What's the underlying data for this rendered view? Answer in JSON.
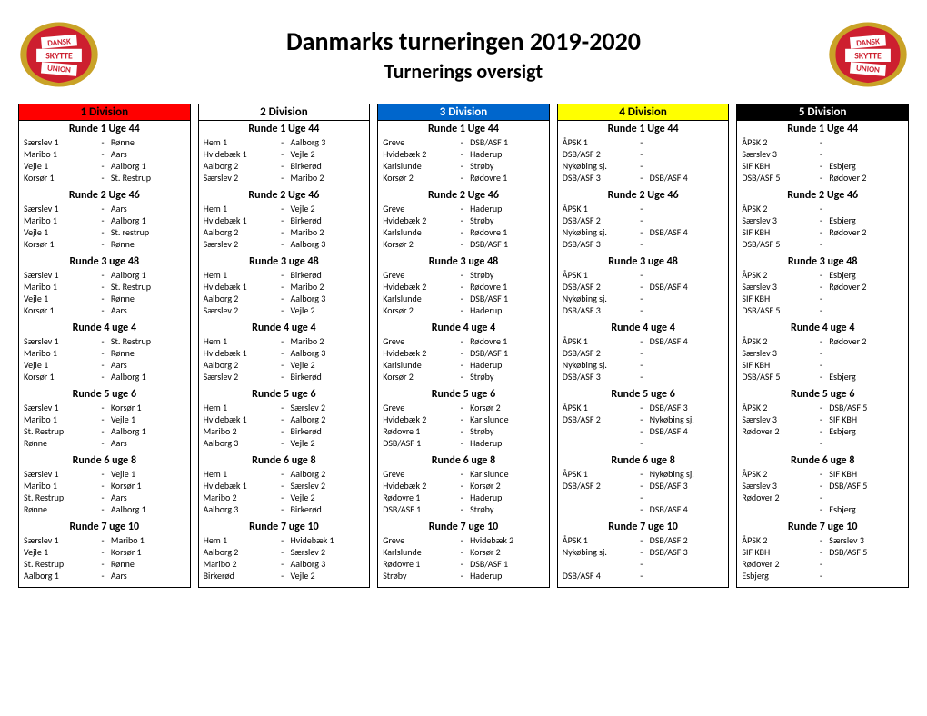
{
  "title": "Danmarks turneringen 2019-2020",
  "subtitle": "Turnerings oversigt",
  "logo": {
    "red": "#cd1f2f",
    "gold": "#c9a227",
    "white": "#ffffff",
    "top_text": "DANSK",
    "mid_text": "SKYTTE",
    "bot_text": "UNION"
  },
  "divisions": [
    {
      "name": "1 Division",
      "header_bg": "#ff0000",
      "header_color": "#000000",
      "rounds": [
        {
          "title": "Runde 1 Uge 44",
          "matches": [
            [
              "Særslev 1",
              "Rønne"
            ],
            [
              "Maribo 1",
              "Aars"
            ],
            [
              "Vejle 1",
              "Aalborg 1"
            ],
            [
              "Korsør 1",
              "St. Restrup"
            ]
          ]
        },
        {
          "title": "Runde 2 Uge 46",
          "matches": [
            [
              "Særslev 1",
              "Aars"
            ],
            [
              "Maribo 1",
              "Aalborg 1"
            ],
            [
              "Vejle 1",
              "St. restrup"
            ],
            [
              "Korsør 1",
              "Rønne"
            ]
          ]
        },
        {
          "title": "Runde 3 uge 48",
          "matches": [
            [
              "Særslev 1",
              "Aalborg 1"
            ],
            [
              "Maribo 1",
              "St. Restrup"
            ],
            [
              "Vejle 1",
              "Rønne"
            ],
            [
              "Korsør 1",
              "Aars"
            ]
          ]
        },
        {
          "title": "Runde 4 uge 4",
          "matches": [
            [
              "Særslev 1",
              "St. Restrup"
            ],
            [
              "Maribo 1",
              "Rønne"
            ],
            [
              "Vejle 1",
              "Aars"
            ],
            [
              "Korsør 1",
              "Aalborg 1"
            ]
          ]
        },
        {
          "title": "Runde 5 uge 6",
          "matches": [
            [
              "Særslev 1",
              "Korsør 1"
            ],
            [
              "Maribo 1",
              "Vejle 1"
            ],
            [
              "St. Restrup",
              "Aalborg 1"
            ],
            [
              "Rønne",
              "Aars"
            ]
          ]
        },
        {
          "title": "Runde 6 uge 8",
          "matches": [
            [
              "Særslev 1",
              "Vejle 1"
            ],
            [
              "Maribo 1",
              "Korsør 1"
            ],
            [
              "St. Restrup",
              "Aars"
            ],
            [
              "Rønne",
              "Aalborg 1"
            ]
          ]
        },
        {
          "title": "Runde 7 uge 10",
          "matches": [
            [
              "Særslev 1",
              "Maribo 1"
            ],
            [
              "Vejle 1",
              "Korsør 1"
            ],
            [
              "St. Restrup",
              "Rønne"
            ],
            [
              "Aalborg 1",
              "Aars"
            ]
          ]
        }
      ]
    },
    {
      "name": "2 Division",
      "header_bg": "#ffffff",
      "header_color": "#000000",
      "rounds": [
        {
          "title": "Runde 1 Uge 44",
          "matches": [
            [
              "Hem 1",
              "Aalborg 3"
            ],
            [
              "Hvidebæk 1",
              "Vejle 2"
            ],
            [
              "Aalborg 2",
              "Birkerød"
            ],
            [
              "Særslev 2",
              "Maribo 2"
            ]
          ]
        },
        {
          "title": "Runde 2 Uge 46",
          "matches": [
            [
              "Hem 1",
              "Vejle 2"
            ],
            [
              "Hvidebæk 1",
              "Birkerød"
            ],
            [
              "Aalborg 2",
              "Maribo 2"
            ],
            [
              "Særslev 2",
              "Aalborg 3"
            ]
          ]
        },
        {
          "title": "Runde 3 uge 48",
          "matches": [
            [
              "Hem 1",
              "Birkerød"
            ],
            [
              "Hvidebæk 1",
              "Maribo 2"
            ],
            [
              "Aalborg 2",
              "Aalborg 3"
            ],
            [
              "Særslev 2",
              "Vejle 2"
            ]
          ]
        },
        {
          "title": "Runde 4 uge 4",
          "matches": [
            [
              "Hem 1",
              "Maribo 2"
            ],
            [
              "Hvidebæk 1",
              "Aalborg 3"
            ],
            [
              "Aalborg 2",
              "Vejle 2"
            ],
            [
              "Særslev 2",
              "Birkerød"
            ]
          ]
        },
        {
          "title": "Runde 5 uge 6",
          "matches": [
            [
              "Hem 1",
              "Særslev 2"
            ],
            [
              "Hvidebæk 1",
              "Aalborg 2"
            ],
            [
              "Maribo 2",
              "Birkerød"
            ],
            [
              "Aalborg 3",
              "Vejle 2"
            ]
          ]
        },
        {
          "title": "Runde 6 uge 8",
          "matches": [
            [
              "Hem 1",
              "Aalborg 2"
            ],
            [
              "Hvidebæk 1",
              "Særslev 2"
            ],
            [
              "Maribo 2",
              "Vejle 2"
            ],
            [
              "Aalborg 3",
              "Birkerød"
            ]
          ]
        },
        {
          "title": "Runde 7 uge 10",
          "matches": [
            [
              "Hem 1",
              "Hvidebæk 1"
            ],
            [
              "Aalborg 2",
              "Særslev 2"
            ],
            [
              "Maribo 2",
              "Aalborg 3"
            ],
            [
              "Birkerød",
              "Vejle 2"
            ]
          ]
        }
      ]
    },
    {
      "name": "3 Division",
      "header_bg": "#0066cc",
      "header_color": "#ffffff",
      "rounds": [
        {
          "title": "Runde 1 Uge 44",
          "matches": [
            [
              "Greve",
              "DSB/ASF 1"
            ],
            [
              "Hvidebæk 2",
              "Haderup"
            ],
            [
              "Karlslunde",
              "Strøby"
            ],
            [
              "Korsør 2",
              "Rødovre 1"
            ]
          ]
        },
        {
          "title": "Runde 2 Uge 46",
          "matches": [
            [
              "Greve",
              "Haderup"
            ],
            [
              "Hvidebæk 2",
              "Strøby"
            ],
            [
              "Karlslunde",
              "Rødovre 1"
            ],
            [
              "Korsør 2",
              "DSB/ASF 1"
            ]
          ]
        },
        {
          "title": "Runde 3 uge 48",
          "matches": [
            [
              "Greve",
              "Strøby"
            ],
            [
              "Hvidebæk 2",
              "Rødovre 1"
            ],
            [
              "Karlslunde",
              "DSB/ASF 1"
            ],
            [
              "Korsør 2",
              "Haderup"
            ]
          ]
        },
        {
          "title": "Runde 4 uge 4",
          "matches": [
            [
              "Greve",
              "Rødovre 1"
            ],
            [
              "Hvidebæk 2",
              "DSB/ASF 1"
            ],
            [
              "Karlslunde",
              "Haderup"
            ],
            [
              "Korsør 2",
              "Strøby"
            ]
          ]
        },
        {
          "title": "Runde 5 uge 6",
          "matches": [
            [
              "Greve",
              "Korsør 2"
            ],
            [
              "Hvidebæk 2",
              "Karlslunde"
            ],
            [
              "Rødovre 1",
              "Strøby"
            ],
            [
              "DSB/ASF 1",
              "Haderup"
            ]
          ]
        },
        {
          "title": "Runde 6 uge 8",
          "matches": [
            [
              "Greve",
              "Karlslunde"
            ],
            [
              "Hvidebæk 2",
              "Korsør 2"
            ],
            [
              "Rødovre 1",
              "Haderup"
            ],
            [
              "DSB/ASF 1",
              "Strøby"
            ]
          ]
        },
        {
          "title": "Runde 7 uge 10",
          "matches": [
            [
              "Greve",
              "Hvidebæk 2"
            ],
            [
              "Karlslunde",
              "Korsør 2"
            ],
            [
              "Rødovre 1",
              "DSB/ASF 1"
            ],
            [
              "Strøby",
              "Haderup"
            ]
          ]
        }
      ]
    },
    {
      "name": "4 Division",
      "header_bg": "#ffff00",
      "header_color": "#000000",
      "rounds": [
        {
          "title": "Runde 1 Uge 44",
          "matches": [
            [
              "ÅPSK 1",
              ""
            ],
            [
              "DSB/ASF 2",
              ""
            ],
            [
              "Nykøbing sj.",
              ""
            ],
            [
              "DSB/ASF 3",
              "DSB/ASF 4"
            ]
          ]
        },
        {
          "title": "Runde 2 Uge 46",
          "matches": [
            [
              "ÅPSK 1",
              ""
            ],
            [
              "DSB/ASF 2",
              ""
            ],
            [
              "Nykøbing sj.",
              "DSB/ASF 4"
            ],
            [
              "DSB/ASF 3",
              ""
            ]
          ]
        },
        {
          "title": "Runde 3 uge 48",
          "matches": [
            [
              "ÅPSK 1",
              ""
            ],
            [
              "DSB/ASF 2",
              "DSB/ASF 4"
            ],
            [
              "Nykøbing sj.",
              ""
            ],
            [
              "DSB/ASF 3",
              ""
            ]
          ]
        },
        {
          "title": "Runde 4 uge 4",
          "matches": [
            [
              "ÅPSK 1",
              "DSB/ASF 4"
            ],
            [
              "DSB/ASF 2",
              ""
            ],
            [
              "Nykøbing sj.",
              ""
            ],
            [
              "DSB/ASF 3",
              ""
            ]
          ]
        },
        {
          "title": "Runde 5 uge 6",
          "matches": [
            [
              "ÅPSK 1",
              "DSB/ASF 3"
            ],
            [
              "DSB/ASF 2",
              "Nykøbing sj."
            ],
            [
              "",
              "DSB/ASF 4"
            ],
            [
              "",
              ""
            ]
          ]
        },
        {
          "title": "Runde 6 uge 8",
          "matches": [
            [
              "ÅPSK 1",
              "Nykøbing sj."
            ],
            [
              "DSB/ASF 2",
              "DSB/ASF 3"
            ],
            [
              "",
              ""
            ],
            [
              "",
              "DSB/ASF 4"
            ]
          ]
        },
        {
          "title": "Runde 7 uge 10",
          "matches": [
            [
              "ÅPSK 1",
              "DSB/ASF 2"
            ],
            [
              "Nykøbing sj.",
              "DSB/ASF 3"
            ],
            [
              "",
              ""
            ],
            [
              "DSB/ASF 4",
              ""
            ]
          ]
        }
      ]
    },
    {
      "name": "5 Division",
      "header_bg": "#000000",
      "header_color": "#ffffff",
      "rounds": [
        {
          "title": "Runde 1 Uge 44",
          "matches": [
            [
              "ÅPSK 2",
              ""
            ],
            [
              "Særslev 3",
              ""
            ],
            [
              "SIF KBH",
              "Esbjerg"
            ],
            [
              "DSB/ASF 5",
              "Rødover 2"
            ]
          ]
        },
        {
          "title": "Runde 2 Uge 46",
          "matches": [
            [
              "ÅPSK 2",
              ""
            ],
            [
              "Særslev 3",
              "Esbjerg"
            ],
            [
              "SIF KBH",
              "Rødover 2"
            ],
            [
              "DSB/ASF 5",
              ""
            ]
          ]
        },
        {
          "title": "Runde 3 uge 48",
          "matches": [
            [
              "ÅPSK 2",
              "Esbjerg"
            ],
            [
              "Særslev 3",
              "Rødover 2"
            ],
            [
              "SIF KBH",
              ""
            ],
            [
              "DSB/ASF 5",
              ""
            ]
          ]
        },
        {
          "title": "Runde 4 uge 4",
          "matches": [
            [
              "ÅPSK 2",
              "Rødover 2"
            ],
            [
              "Særslev 3",
              ""
            ],
            [
              "SIF KBH",
              ""
            ],
            [
              "DSB/ASF 5",
              "Esbjerg"
            ]
          ]
        },
        {
          "title": "Runde 5 uge 6",
          "matches": [
            [
              "ÅPSK 2",
              "DSB/ASF 5"
            ],
            [
              "Særslev 3",
              "SIF KBH"
            ],
            [
              "Rødover 2",
              "Esbjerg"
            ],
            [
              "",
              ""
            ]
          ]
        },
        {
          "title": "Runde 6 uge 8",
          "matches": [
            [
              "ÅPSK 2",
              "SIF KBH"
            ],
            [
              "Særslev 3",
              "DSB/ASF 5"
            ],
            [
              "Rødover 2",
              ""
            ],
            [
              "",
              "Esbjerg"
            ]
          ]
        },
        {
          "title": "Runde 7 uge 10",
          "matches": [
            [
              "ÅPSK 2",
              "Særslev 3"
            ],
            [
              "SIF KBH",
              "DSB/ASF 5"
            ],
            [
              "Rødover 2",
              ""
            ],
            [
              "Esbjerg",
              ""
            ]
          ]
        }
      ]
    }
  ]
}
